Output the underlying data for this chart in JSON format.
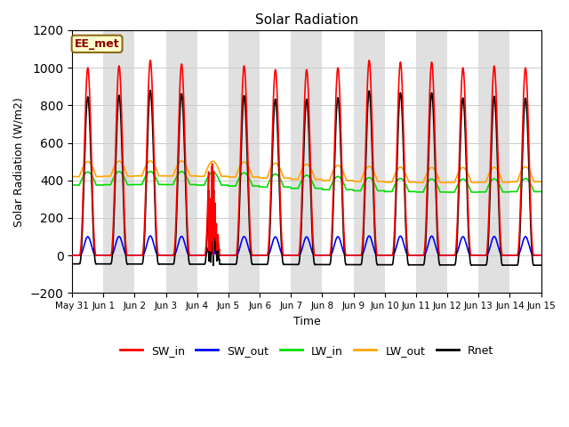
{
  "title": "Solar Radiation",
  "xlabel": "Time",
  "ylabel": "Solar Radiation (W/m2)",
  "ylim": [
    -200,
    1200
  ],
  "yticks": [
    -200,
    0,
    200,
    400,
    600,
    800,
    1000,
    1200
  ],
  "n_days": 15,
  "dt": 0.25,
  "label_text": "EE_met",
  "series": {
    "SW_in": {
      "color": "#ff0000",
      "lw": 1.2
    },
    "SW_out": {
      "color": "#0000ff",
      "lw": 1.2
    },
    "LW_in": {
      "color": "#00dd00",
      "lw": 1.2
    },
    "LW_out": {
      "color": "#ffa500",
      "lw": 1.2
    },
    "Rnet": {
      "color": "#000000",
      "lw": 1.2
    }
  },
  "background_color": "#ffffff",
  "band_color": "#e0e0e0",
  "grid_color": "#cccccc",
  "xtick_labels": [
    "May 31",
    "Jun 1",
    "Jun 2",
    "Jun 3",
    "Jun 4",
    "Jun 5",
    "Jun 6",
    "Jun 7",
    "Jun 8",
    "Jun 9",
    "Jun 10",
    "Jun 11",
    "Jun 12",
    "Jun 13",
    "Jun 14",
    "Jun 15"
  ]
}
